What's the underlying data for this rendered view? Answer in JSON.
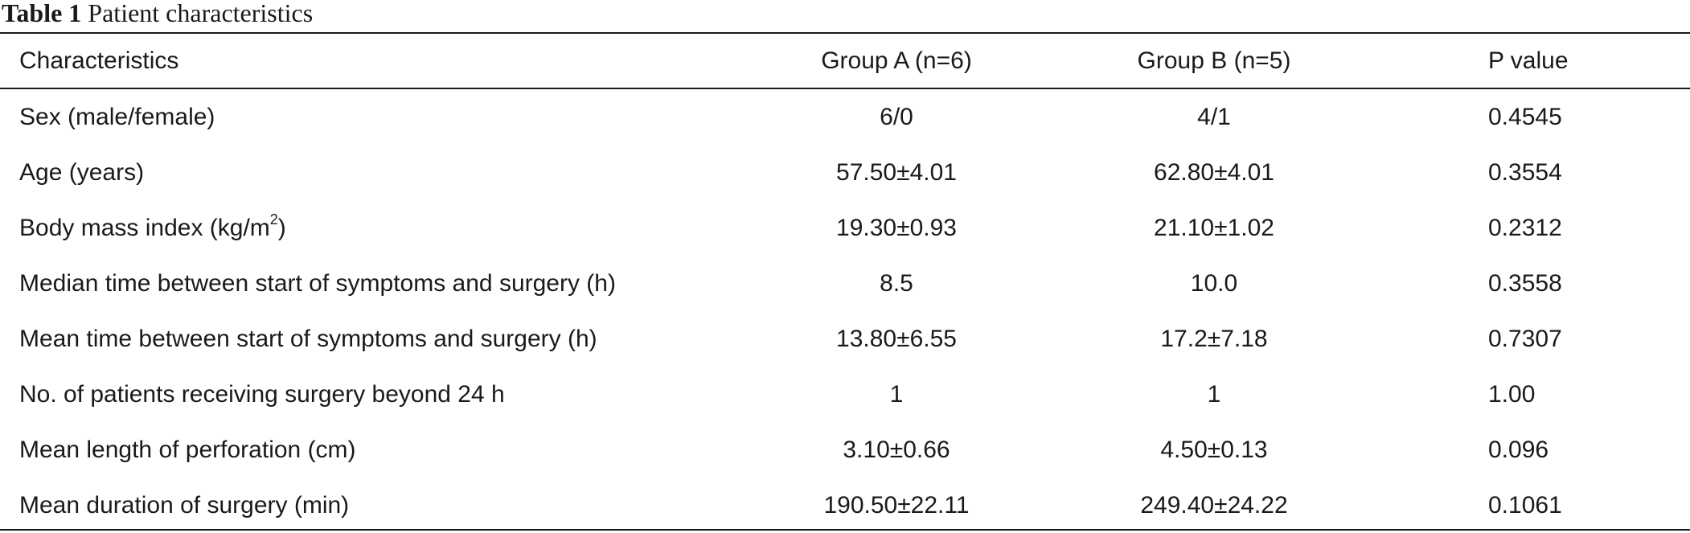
{
  "caption": {
    "label": "Table 1",
    "title": "Patient characteristics"
  },
  "table": {
    "headers": [
      "Characteristics",
      "Group A (n=6)",
      "Group B (n=5)",
      "P value"
    ],
    "rows": [
      {
        "characteristic": "Sex (male/female)",
        "group_a": "6/0",
        "group_b": "4/1",
        "p_value": "0.4545"
      },
      {
        "characteristic": "Age (years)",
        "group_a": "57.50±4.01",
        "group_b": "62.80±4.01",
        "p_value": "0.3554"
      },
      {
        "characteristic": "Body mass index (kg/m",
        "characteristic_sup": "2",
        "characteristic_after": ")",
        "group_a": "19.30±0.93",
        "group_b": "21.10±1.02",
        "p_value": "0.2312"
      },
      {
        "characteristic": "Median time between start of symptoms and surgery (h)",
        "group_a": "8.5",
        "group_b": "10.0",
        "p_value": "0.3558"
      },
      {
        "characteristic": "Mean time between start of symptoms and surgery (h)",
        "group_a": "13.80±6.55",
        "group_b": "17.2±7.18",
        "p_value": "0.7307"
      },
      {
        "characteristic": "No. of patients receiving surgery beyond 24 h",
        "group_a": "1",
        "group_b": "1",
        "p_value": "1.00"
      },
      {
        "characteristic": "Mean length of perforation (cm)",
        "group_a": "3.10±0.66",
        "group_b": "4.50±0.13",
        "p_value": "0.096"
      },
      {
        "characteristic": "Mean duration of surgery (min)",
        "group_a": "190.50±22.11",
        "group_b": "249.40±24.22",
        "p_value": "0.1061"
      }
    ]
  }
}
